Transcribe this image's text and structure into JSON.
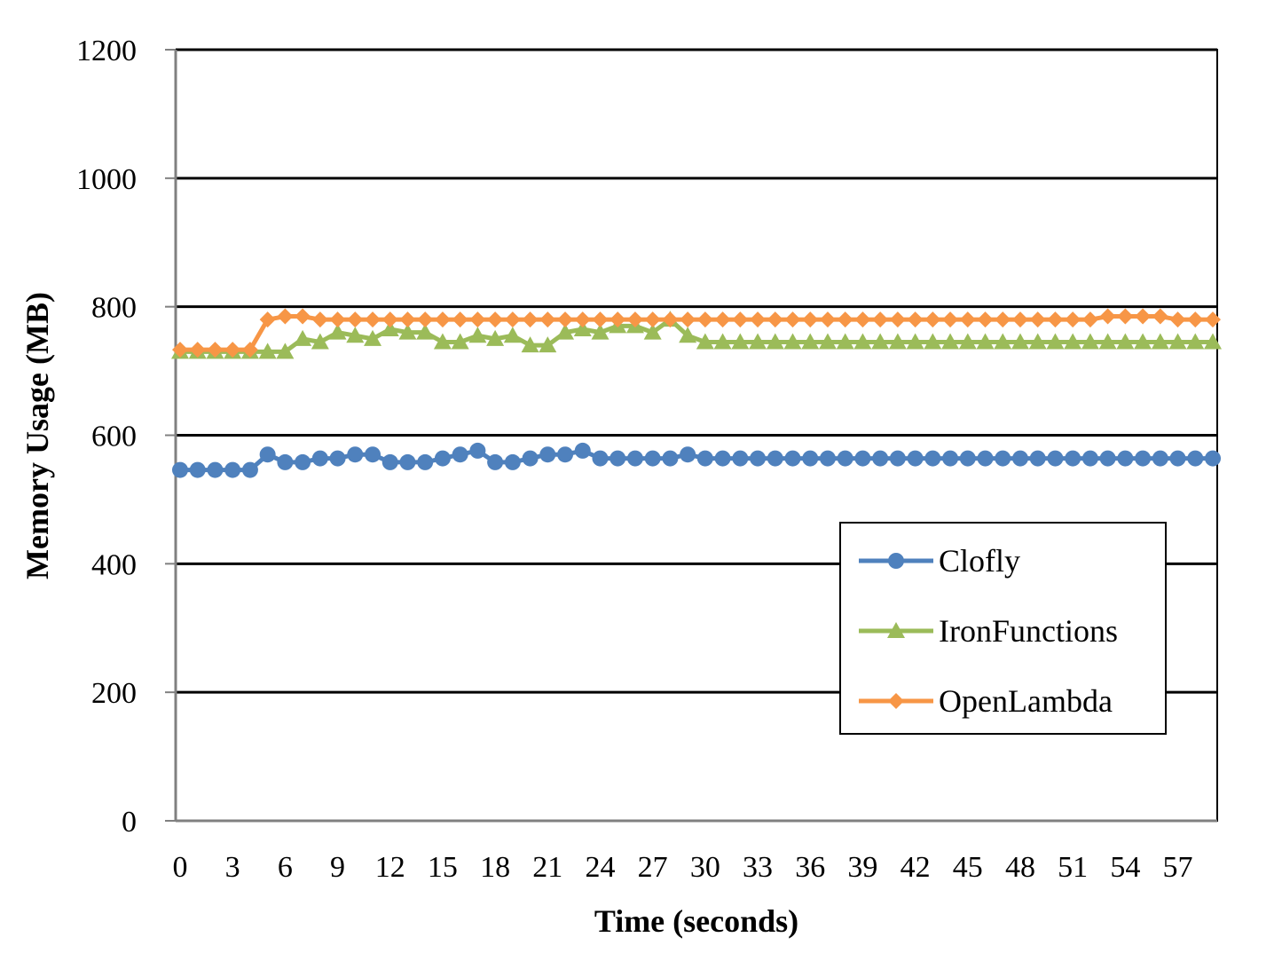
{
  "chart_data": {
    "type": "line",
    "title": "",
    "xlabel": "Time (seconds)",
    "ylabel": "Memory  Usage (MB)",
    "ylim": [
      0,
      1200
    ],
    "yticks": [
      0,
      200,
      400,
      600,
      800,
      1000,
      1200
    ],
    "xticks": [
      0,
      3,
      6,
      9,
      12,
      15,
      18,
      21,
      24,
      27,
      30,
      33,
      36,
      39,
      42,
      45,
      48,
      51,
      54,
      57
    ],
    "x": [
      0,
      1,
      2,
      3,
      4,
      5,
      6,
      7,
      8,
      9,
      10,
      11,
      12,
      13,
      14,
      15,
      16,
      17,
      18,
      19,
      20,
      21,
      22,
      23,
      24,
      25,
      26,
      27,
      28,
      29,
      30,
      31,
      32,
      33,
      34,
      35,
      36,
      37,
      38,
      39,
      40,
      41,
      42,
      43,
      44,
      45,
      46,
      47,
      48,
      49,
      50,
      51,
      52,
      53,
      54,
      55,
      56,
      57,
      58,
      59
    ],
    "grid": "horizontal",
    "legend_position": "right",
    "series": [
      {
        "name": "Clofly",
        "color": "#4f81bd",
        "marker": "circle",
        "values": [
          546,
          546,
          546,
          546,
          546,
          570,
          558,
          558,
          564,
          564,
          570,
          570,
          558,
          558,
          558,
          564,
          570,
          576,
          558,
          558,
          564,
          570,
          570,
          576,
          564,
          564,
          564,
          564,
          564,
          570,
          564,
          564,
          564,
          564,
          564,
          564,
          564,
          564,
          564,
          564,
          564,
          564,
          564,
          564,
          564,
          564,
          564,
          564,
          564,
          564,
          564,
          564,
          564,
          564,
          564,
          564,
          564,
          564,
          564,
          564
        ]
      },
      {
        "name": "IronFunctions",
        "color": "#9bbb59",
        "marker": "triangle",
        "values": [
          730,
          730,
          730,
          730,
          730,
          730,
          730,
          750,
          745,
          760,
          755,
          750,
          765,
          760,
          760,
          745,
          745,
          755,
          750,
          755,
          740,
          740,
          760,
          765,
          760,
          770,
          770,
          760,
          780,
          755,
          745,
          745,
          745,
          745,
          745,
          745,
          745,
          745,
          745,
          745,
          745,
          745,
          745,
          745,
          745,
          745,
          745,
          745,
          745,
          745,
          745,
          745,
          745,
          745,
          745,
          745,
          745,
          745,
          745,
          745
        ]
      },
      {
        "name": "OpenLambda",
        "color": "#f79646",
        "marker": "diamond",
        "values": [
          733,
          733,
          733,
          733,
          733,
          780,
          785,
          785,
          780,
          780,
          780,
          780,
          780,
          780,
          780,
          780,
          780,
          780,
          780,
          780,
          780,
          780,
          780,
          780,
          780,
          780,
          780,
          780,
          780,
          780,
          780,
          780,
          780,
          780,
          780,
          780,
          780,
          780,
          780,
          780,
          780,
          780,
          780,
          780,
          780,
          780,
          780,
          780,
          780,
          780,
          780,
          780,
          780,
          785,
          785,
          785,
          785,
          780,
          780,
          780
        ]
      }
    ]
  }
}
